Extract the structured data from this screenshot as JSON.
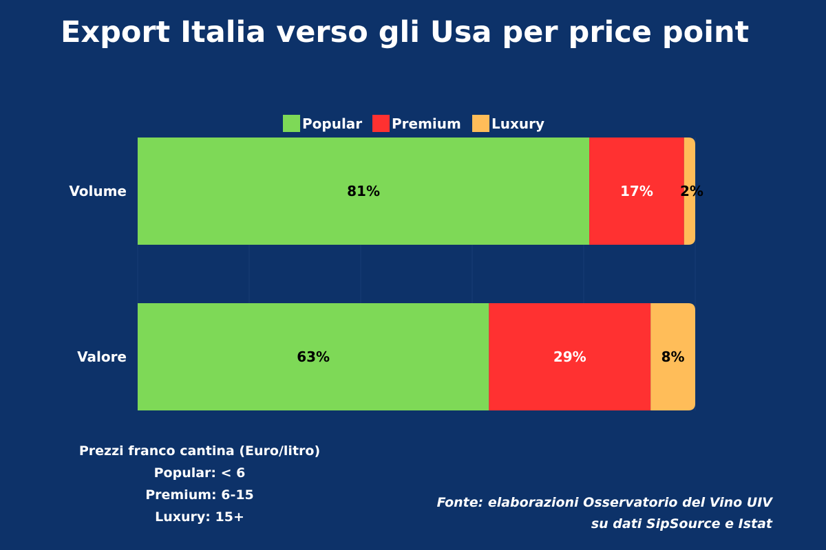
{
  "title": "Export Italia verso gli Usa per price point",
  "chart_data": {
    "type": "bar",
    "orientation": "horizontal",
    "stacked": true,
    "title": "Export Italia verso gli Usa per price point",
    "categories": [
      "Volume",
      "Valore"
    ],
    "series": [
      {
        "name": "Popular",
        "values": [
          81,
          63
        ],
        "labels": [
          "81%",
          "63%"
        ],
        "color": "#7ed957",
        "label_color": "#000000"
      },
      {
        "name": "Premium",
        "values": [
          17,
          29
        ],
        "labels": [
          "17%",
          "29%"
        ],
        "color": "#ff3131",
        "label_color": "#ffffff"
      },
      {
        "name": "Luxury",
        "values": [
          2,
          8
        ],
        "labels": [
          "2%",
          "8%"
        ],
        "color": "#ffbd59",
        "label_color": "#000000"
      }
    ],
    "xlim": [
      0,
      100
    ],
    "xlabel": "",
    "ylabel": "",
    "grid": true,
    "legend_position": "top"
  },
  "notes": {
    "heading": "Prezzi franco cantina (Euro/litro)",
    "lines": [
      "Popular: < 6",
      "Premium: 6-15",
      "Luxury: 15+"
    ]
  },
  "source": {
    "line1": "Fonte: elaborazioni Osservatorio del Vino UIV",
    "line2": "su dati SipSource e Istat"
  },
  "colors": {
    "background": "#0d3269",
    "gridline": "#163c75"
  }
}
